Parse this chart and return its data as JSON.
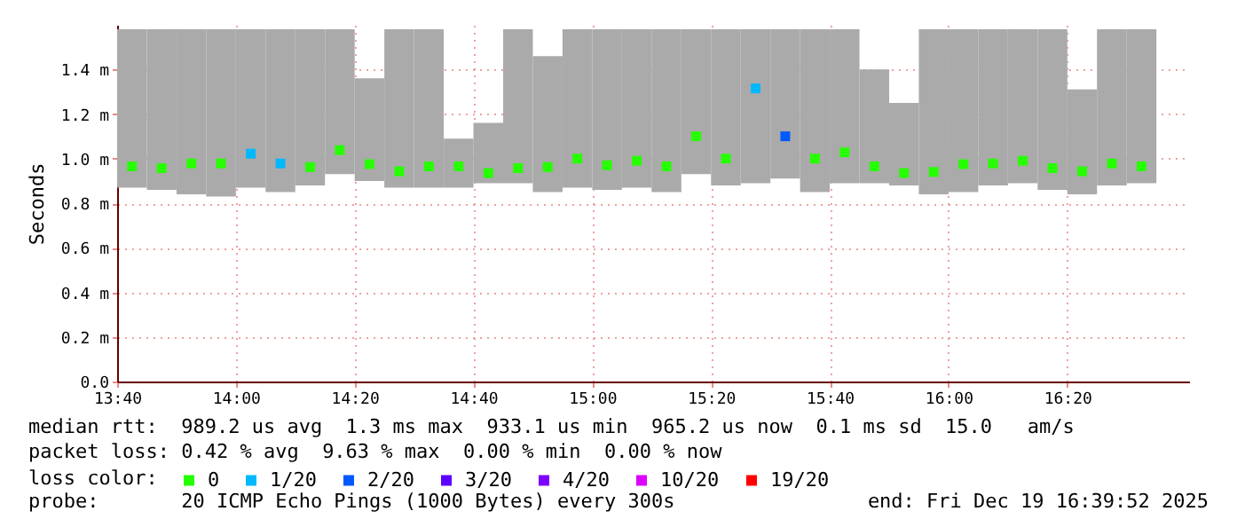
{
  "chart_data": {
    "type": "bar",
    "ylabel": "Seconds",
    "legend_title": "loss color:",
    "legend": "bottom left",
    "grid": true,
    "marker": "square",
    "x": [
      13.7083,
      13.7917,
      13.875,
      13.9583,
      14.0417,
      14.125,
      14.2083,
      14.2917,
      14.375,
      14.4583,
      14.5417,
      14.625,
      14.7083,
      14.7917,
      14.875,
      14.9583,
      15.0417,
      15.125,
      15.2083,
      15.2917,
      15.375,
      15.4583,
      15.5417,
      15.625,
      15.7083,
      15.7917,
      15.875,
      15.9583,
      16.0417,
      16.125,
      16.2083,
      16.2917,
      16.375,
      16.4583,
      16.5417
    ],
    "xlim": [
      13.6667,
      16.675
    ],
    "xticks": [
      {
        "value": 13.6667,
        "label": "13:40"
      },
      {
        "value": 14,
        "label": "14:00"
      },
      {
        "value": 14.3333,
        "label": "14:20"
      },
      {
        "value": 14.6667,
        "label": "14:40"
      },
      {
        "value": 15,
        "label": "15:00"
      },
      {
        "value": 15.3333,
        "label": "15:20"
      },
      {
        "value": 15.6667,
        "label": "15:40"
      },
      {
        "value": 16,
        "label": "16:00"
      },
      {
        "value": 16.3333,
        "label": "16:20"
      }
    ],
    "ylim": [
      0,
      1.6
    ],
    "yticks": [
      {
        "value": 0,
        "label": "0.0"
      },
      {
        "value": 0.2,
        "label": "0.2 m"
      },
      {
        "value": 0.4,
        "label": "0.4 m"
      },
      {
        "value": 0.6,
        "label": "0.6 m"
      },
      {
        "value": 0.8,
        "label": "0.8 m"
      },
      {
        "value": 1.0,
        "label": "1.0 m"
      },
      {
        "value": 1.2,
        "label": "1.2 m"
      },
      {
        "value": 1.4,
        "label": "1.4 m"
      }
    ],
    "series": [
      {
        "color": "#aaaaaa",
        "base": [
          0.87,
          0.86,
          0.84,
          0.83,
          0.87,
          0.85,
          0.88,
          0.93,
          0.9,
          0.87,
          0.87,
          0.87,
          0.89,
          0.89,
          0.85,
          0.87,
          0.86,
          0.87,
          0.85,
          0.93,
          0.88,
          0.89,
          0.91,
          0.85,
          0.89,
          0.89,
          0.88,
          0.84,
          0.85,
          0.88,
          0.89,
          0.86,
          0.84,
          0.88,
          0.89
        ],
        "values": [
          0.71,
          0.72,
          0.74,
          0.75,
          0.71,
          0.73,
          0.7,
          0.65,
          0.46,
          0.71,
          0.71,
          0.22,
          0.27,
          0.69,
          0.61,
          0.71,
          0.72,
          0.71,
          0.73,
          0.65,
          0.7,
          0.69,
          0.67,
          0.73,
          0.69,
          0.51,
          0.37,
          0.74,
          0.73,
          0.7,
          0.69,
          0.72,
          0.47,
          0.7,
          0.69
        ]
      },
      {
        "type": "scatter",
        "name": "0",
        "color": "#26ff00",
        "values": [
          0.965,
          0.957,
          0.978,
          0.978,
          null,
          null,
          0.962,
          1.038,
          0.975,
          0.943,
          0.965,
          0.965,
          0.935,
          0.957,
          0.962,
          1.0,
          0.97,
          0.99,
          0.965,
          1.1,
          1.0,
          null,
          null,
          1.0,
          1.028,
          0.965,
          0.935,
          0.94,
          0.975,
          0.978,
          0.99,
          0.957,
          0.943,
          0.978,
          0.965
        ]
      },
      {
        "type": "scatter",
        "name": "1/20",
        "color": "#00b8ff",
        "values": [
          null,
          null,
          null,
          null,
          1.022,
          0.978,
          null,
          null,
          null,
          null,
          null,
          null,
          null,
          null,
          null,
          null,
          null,
          null,
          null,
          null,
          null,
          1.315,
          null,
          null,
          null,
          null,
          null,
          null,
          null,
          null,
          null,
          null,
          null,
          null,
          null
        ]
      },
      {
        "type": "scatter",
        "name": "2/20",
        "color": "#0059ff",
        "values": [
          null,
          null,
          null,
          null,
          null,
          null,
          null,
          null,
          null,
          null,
          null,
          null,
          null,
          null,
          null,
          null,
          null,
          null,
          null,
          null,
          null,
          null,
          1.1,
          null,
          null,
          null,
          null,
          null,
          null,
          null,
          null,
          null,
          null,
          null,
          null
        ]
      },
      {
        "type": "scatter",
        "name": "3/20",
        "color": "#5e00ff",
        "values": [
          null,
          null,
          null,
          null,
          null,
          null,
          null,
          null,
          null,
          null,
          null,
          null,
          null,
          null,
          null,
          null,
          null,
          null,
          null,
          null,
          null,
          null,
          null,
          null,
          null,
          null,
          null,
          null,
          null,
          null,
          null,
          null,
          null,
          null,
          null
        ]
      },
      {
        "type": "scatter",
        "name": "4/20",
        "color": "#7e00ff",
        "values": [
          null,
          null,
          null,
          null,
          null,
          null,
          null,
          null,
          null,
          null,
          null,
          null,
          null,
          null,
          null,
          null,
          null,
          null,
          null,
          null,
          null,
          null,
          null,
          null,
          null,
          null,
          null,
          null,
          null,
          null,
          null,
          null,
          null,
          null,
          null
        ]
      },
      {
        "type": "scatter",
        "name": "10/20",
        "color": "#dd00ff",
        "values": [
          null,
          null,
          null,
          null,
          null,
          null,
          null,
          null,
          null,
          null,
          null,
          null,
          null,
          null,
          null,
          null,
          null,
          null,
          null,
          null,
          null,
          null,
          null,
          null,
          null,
          null,
          null,
          null,
          null,
          null,
          null,
          null,
          null,
          null,
          null
        ]
      },
      {
        "type": "scatter",
        "name": "19/20",
        "color": "#ff0000",
        "values": [
          null,
          null,
          null,
          null,
          null,
          null,
          null,
          null,
          null,
          null,
          null,
          null,
          null,
          null,
          null,
          null,
          null,
          null,
          null,
          null,
          null,
          null,
          null,
          null,
          null,
          null,
          null,
          null,
          null,
          null,
          null,
          null,
          null,
          null,
          null
        ]
      }
    ],
    "annotations": [
      "median rtt:  989.2 us avg  1.3 ms max  933.1 us min  965.2 us now  0.1 ms sd  15.0   am/s",
      "packet loss: 0.42 % avg  9.63 % max  0.00 % min  0.00 % now",
      "probe:       20 ICMP Echo Pings (1000 Bytes) every 300s",
      "end: Fri Dec 19 16:39:52 2025"
    ]
  }
}
